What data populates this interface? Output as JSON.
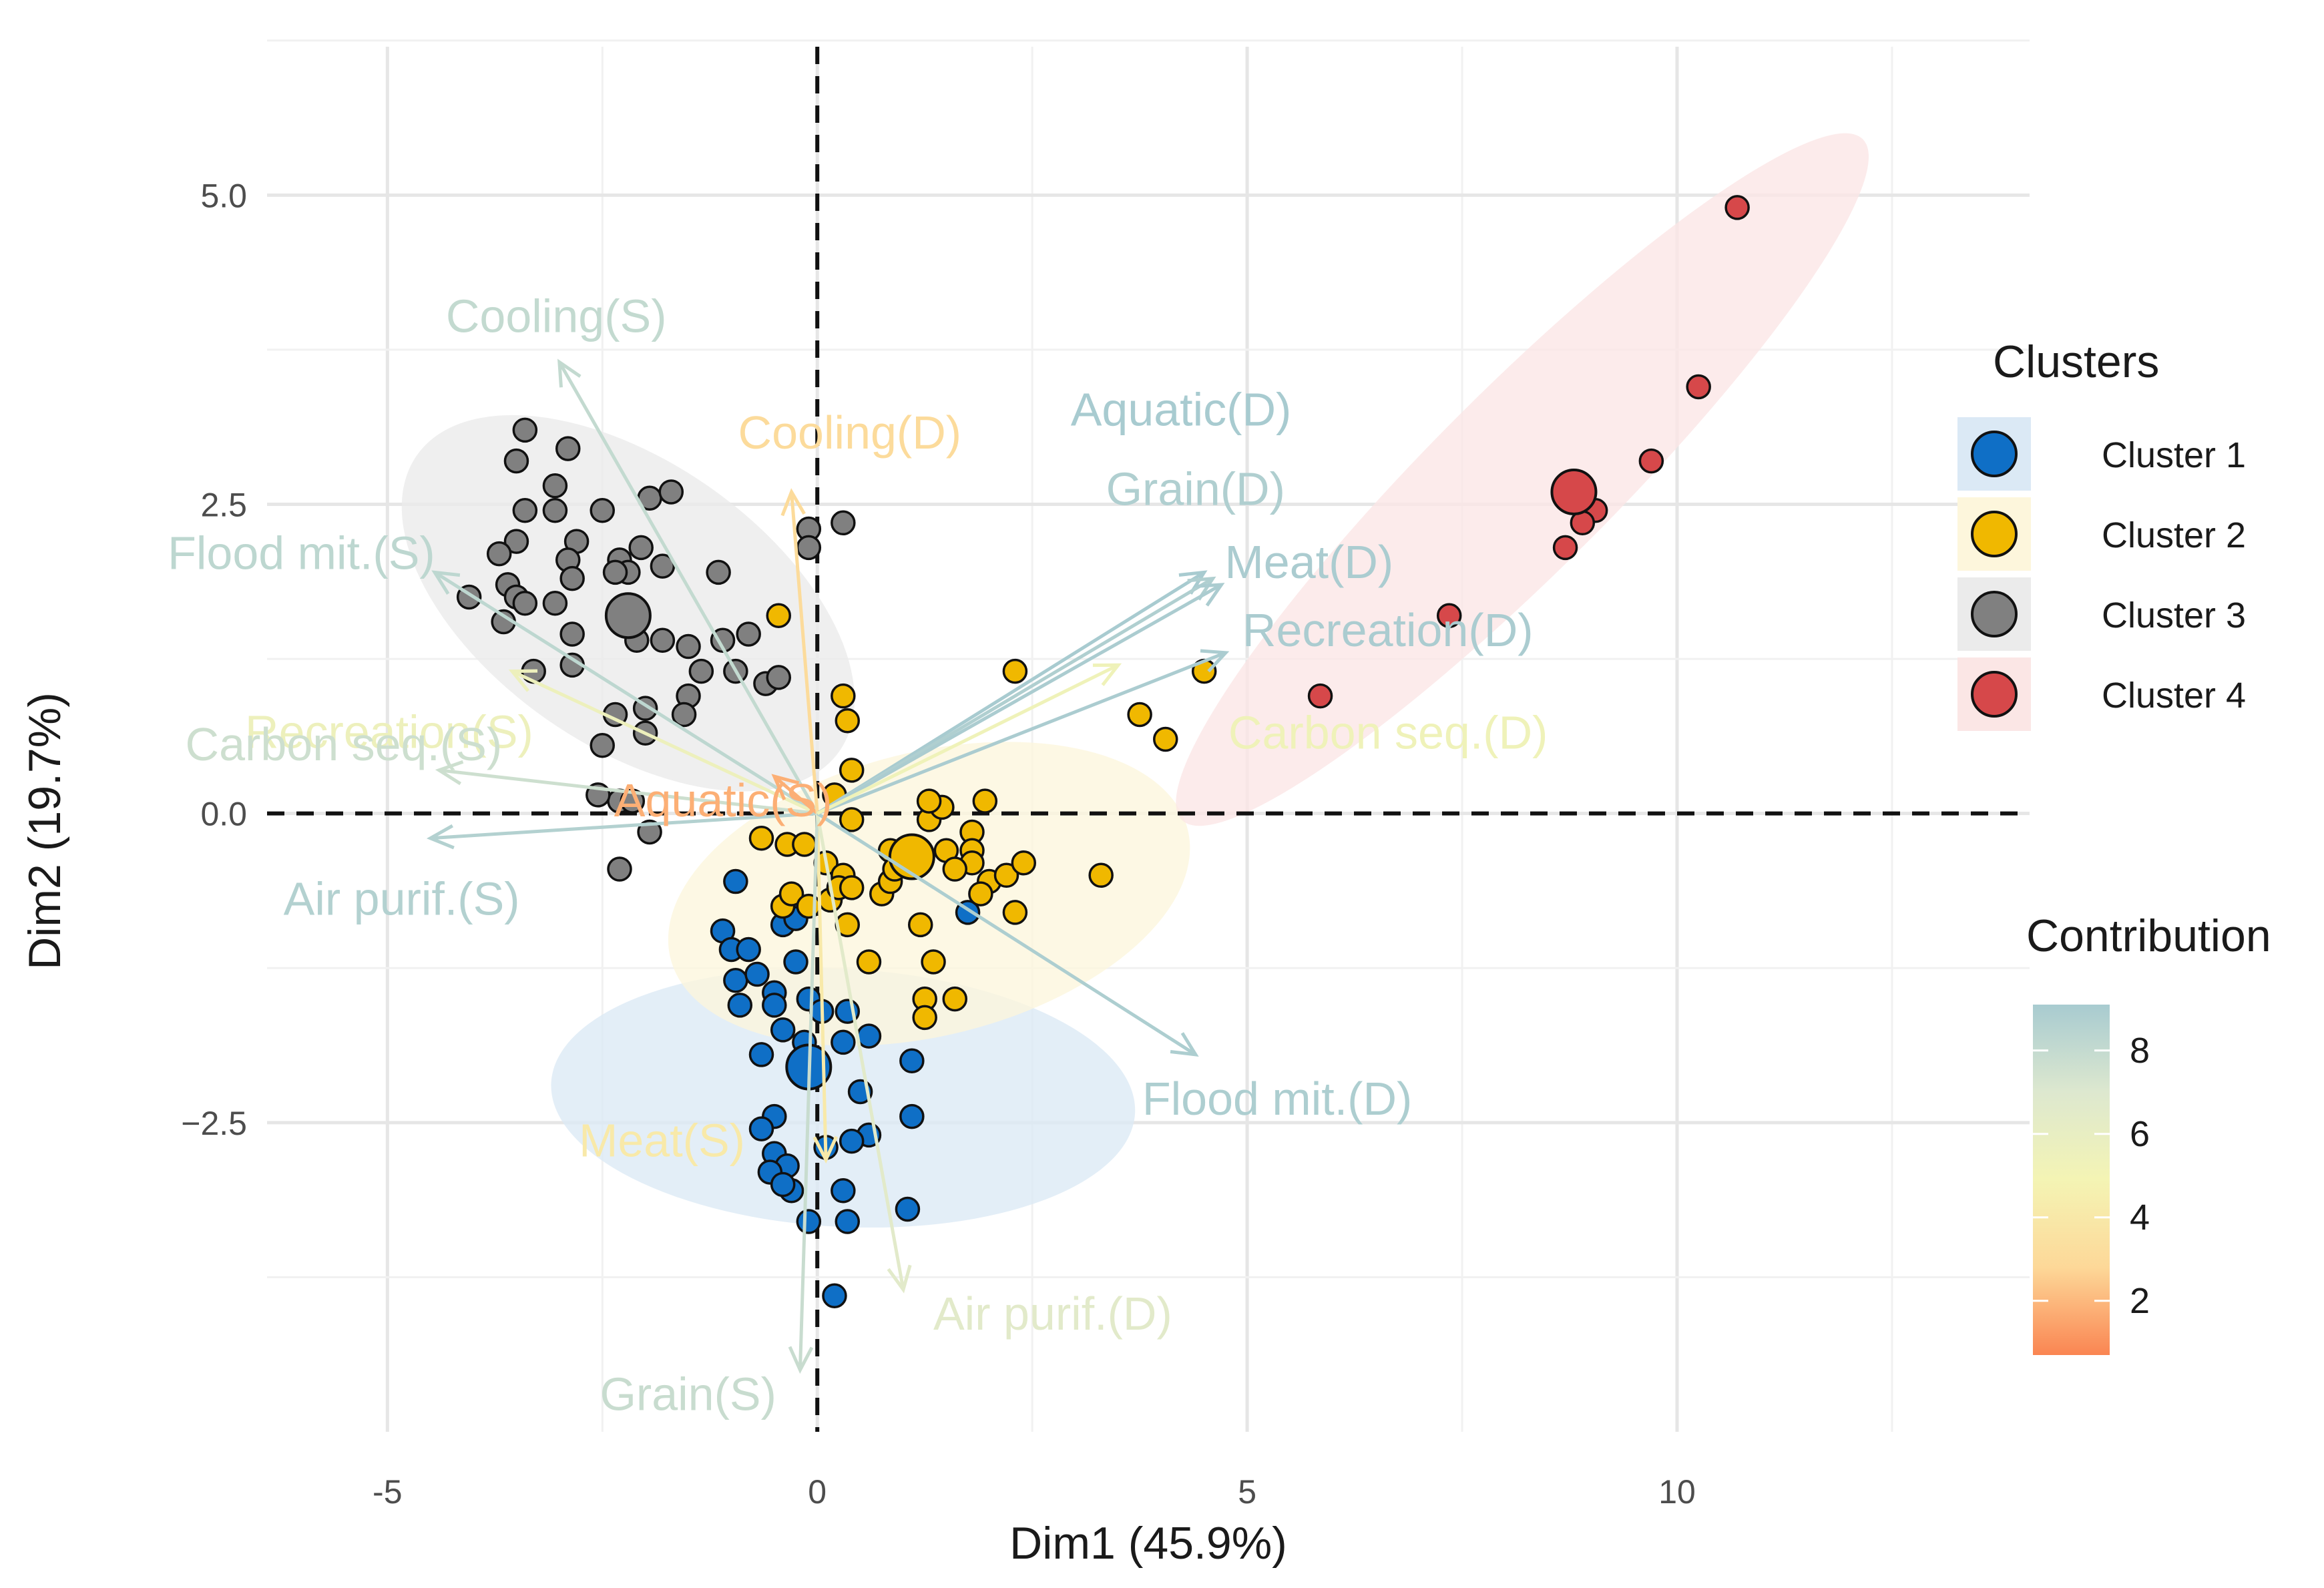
{
  "chart_data": {
    "type": "scatter",
    "subtype": "PCA biplot (individuals + variables)",
    "xlabel": "Dim1 (45.9%)",
    "ylabel": "Dim2 (19.7%)",
    "xlim": [
      -6.4,
      14.1
    ],
    "ylim": [
      -5.0,
      6.2
    ],
    "x_ticks": [
      -5,
      0,
      5,
      10
    ],
    "y_ticks": [
      -2.5,
      0.0,
      2.5,
      5.0
    ],
    "x_tick_labels": [
      "-5",
      "0",
      "5",
      "10"
    ],
    "y_tick_labels": [
      "−2.5",
      "0.0",
      "2.5",
      "5.0"
    ],
    "grid": true,
    "reference_lines": {
      "x": 0,
      "y": 0,
      "style": "dashed"
    },
    "legends": {
      "clusters": {
        "title": "Clusters",
        "position": "right",
        "items": [
          {
            "label": "Cluster 1",
            "color": "#0f6fc6"
          },
          {
            "label": "Cluster 2",
            "color": "#f0b800"
          },
          {
            "label": "Cluster 3",
            "color": "#808080"
          },
          {
            "label": "Cluster 4",
            "color": "#d6484a"
          }
        ]
      },
      "contribution": {
        "title": "Contribution",
        "position": "right-bottom",
        "range": [
          1,
          9
        ],
        "tick_values": [
          2,
          4,
          6,
          8
        ],
        "tick_labels": [
          "2",
          "4",
          "6",
          "8"
        ],
        "gradient": [
          "#fa8552",
          "#fdd898",
          "#f4f4b4",
          "#dde8cf",
          "#a8cbd0"
        ]
      }
    },
    "clusters": [
      {
        "name": "Cluster 1",
        "color": "#0f6fc6",
        "fill": "#dbe9f5",
        "centroid": [
          -0.1,
          -2.05
        ],
        "ellipse": {
          "cx": 0.3,
          "cy": -2.3,
          "rx": 1.5,
          "ry": 3.4,
          "angle_deg": 87
        },
        "points": [
          [
            -0.95,
            -0.55
          ],
          [
            -1.1,
            -0.95
          ],
          [
            -1.0,
            -1.1
          ],
          [
            -0.8,
            -1.1
          ],
          [
            -0.95,
            -1.35
          ],
          [
            -0.7,
            -1.3
          ],
          [
            -0.5,
            -1.45
          ],
          [
            -0.4,
            -0.9
          ],
          [
            -0.3,
            -0.7
          ],
          [
            -0.25,
            -1.2
          ],
          [
            -0.1,
            -1.5
          ],
          [
            -0.9,
            -1.55
          ],
          [
            -0.5,
            -1.55
          ],
          [
            -0.4,
            -1.75
          ],
          [
            -0.65,
            -1.95
          ],
          [
            -0.15,
            -1.85
          ],
          [
            0.05,
            -1.6
          ],
          [
            0.35,
            -1.6
          ],
          [
            0.3,
            -1.85
          ],
          [
            0.6,
            -1.8
          ],
          [
            1.1,
            -2.0
          ],
          [
            0.5,
            -2.25
          ],
          [
            1.1,
            -2.45
          ],
          [
            0.6,
            -2.6
          ],
          [
            0.4,
            -2.65
          ],
          [
            0.1,
            -2.7
          ],
          [
            -0.5,
            -2.45
          ],
          [
            -0.65,
            -2.55
          ],
          [
            -0.5,
            -2.75
          ],
          [
            -0.35,
            -2.85
          ],
          [
            -0.55,
            -2.9
          ],
          [
            -0.3,
            -3.05
          ],
          [
            -0.4,
            -3.0
          ],
          [
            0.3,
            -3.05
          ],
          [
            0.35,
            -3.3
          ],
          [
            -0.1,
            -3.3
          ],
          [
            1.05,
            -3.2
          ],
          [
            0.2,
            -3.9
          ],
          [
            1.75,
            -0.8
          ],
          [
            -0.25,
            -0.85
          ]
        ]
      },
      {
        "name": "Cluster 2",
        "color": "#f0b800",
        "fill": "#fdf6dc",
        "centroid": [
          1.1,
          -0.35
        ],
        "ellipse": {
          "cx": 1.3,
          "cy": -0.65,
          "rx": 3.1,
          "ry": 1.65,
          "angle_deg": 14
        },
        "points": [
          [
            -0.45,
            1.6
          ],
          [
            0.3,
            0.95
          ],
          [
            0.35,
            0.75
          ],
          [
            0.4,
            0.35
          ],
          [
            0.2,
            0.15
          ],
          [
            0.4,
            -0.05
          ],
          [
            -0.65,
            -0.2
          ],
          [
            -0.35,
            -0.25
          ],
          [
            -0.15,
            -0.25
          ],
          [
            0.1,
            -0.4
          ],
          [
            0.3,
            -0.5
          ],
          [
            -0.4,
            -0.75
          ],
          [
            -0.3,
            -0.65
          ],
          [
            -0.1,
            -0.75
          ],
          [
            0.15,
            -0.7
          ],
          [
            0.25,
            -0.6
          ],
          [
            0.4,
            -0.6
          ],
          [
            0.35,
            -0.9
          ],
          [
            0.75,
            -0.65
          ],
          [
            0.85,
            -0.55
          ],
          [
            0.85,
            -0.3
          ],
          [
            0.9,
            -0.45
          ],
          [
            1.3,
            -0.05
          ],
          [
            1.45,
            0.05
          ],
          [
            1.3,
            0.1
          ],
          [
            1.5,
            -0.3
          ],
          [
            1.8,
            -0.15
          ],
          [
            1.8,
            -0.3
          ],
          [
            1.8,
            -0.4
          ],
          [
            2.0,
            -0.55
          ],
          [
            1.9,
            -0.65
          ],
          [
            2.2,
            -0.5
          ],
          [
            2.4,
            -0.4
          ],
          [
            2.3,
            -0.8
          ],
          [
            1.95,
            0.1
          ],
          [
            1.6,
            -0.45
          ],
          [
            1.2,
            -0.9
          ],
          [
            1.35,
            -1.2
          ],
          [
            0.6,
            -1.2
          ],
          [
            1.25,
            -1.5
          ],
          [
            1.25,
            -1.65
          ],
          [
            1.6,
            -1.5
          ],
          [
            3.3,
            -0.5
          ],
          [
            2.3,
            1.15
          ],
          [
            3.75,
            0.8
          ],
          [
            4.05,
            0.6
          ],
          [
            4.5,
            1.15
          ]
        ]
      },
      {
        "name": "Cluster 3",
        "color": "#808080",
        "fill": "#ebebeb",
        "centroid": [
          -2.2,
          1.6
        ],
        "ellipse": {
          "cx": -2.2,
          "cy": 1.7,
          "rx": 3.0,
          "ry": 1.65,
          "angle_deg": -35
        },
        "points": [
          [
            -3.4,
            3.1
          ],
          [
            -3.5,
            2.85
          ],
          [
            -2.9,
            2.95
          ],
          [
            -3.05,
            2.65
          ],
          [
            -3.05,
            2.45
          ],
          [
            -3.4,
            2.45
          ],
          [
            -2.5,
            2.45
          ],
          [
            -3.5,
            2.2
          ],
          [
            -2.8,
            2.2
          ],
          [
            -3.7,
            2.1
          ],
          [
            -2.9,
            2.05
          ],
          [
            -2.3,
            2.05
          ],
          [
            -1.95,
            2.55
          ],
          [
            -1.7,
            2.6
          ],
          [
            -2.05,
            2.15
          ],
          [
            -1.8,
            2.0
          ],
          [
            -2.2,
            1.95
          ],
          [
            -2.35,
            1.95
          ],
          [
            -2.85,
            1.9
          ],
          [
            -3.6,
            1.85
          ],
          [
            -3.5,
            1.75
          ],
          [
            -3.4,
            1.7
          ],
          [
            -3.05,
            1.7
          ],
          [
            -4.05,
            1.75
          ],
          [
            -3.65,
            1.55
          ],
          [
            -2.85,
            1.45
          ],
          [
            -2.1,
            1.4
          ],
          [
            -1.8,
            1.4
          ],
          [
            -1.5,
            1.35
          ],
          [
            -1.15,
            1.95
          ],
          [
            -1.1,
            1.4
          ],
          [
            -0.8,
            1.45
          ],
          [
            -2.85,
            1.2
          ],
          [
            -3.3,
            1.15
          ],
          [
            -1.35,
            1.15
          ],
          [
            -0.95,
            1.15
          ],
          [
            -0.6,
            1.05
          ],
          [
            -0.45,
            1.1
          ],
          [
            -1.5,
            0.95
          ],
          [
            -1.55,
            0.8
          ],
          [
            -2.35,
            0.8
          ],
          [
            -2.0,
            0.85
          ],
          [
            -2.0,
            0.65
          ],
          [
            -2.5,
            0.55
          ],
          [
            -2.3,
            0.1
          ],
          [
            -2.55,
            0.15
          ],
          [
            -2.15,
            0.1
          ],
          [
            -1.95,
            -0.15
          ],
          [
            -2.3,
            -0.45
          ],
          [
            -0.1,
            2.3
          ],
          [
            -0.1,
            2.15
          ],
          [
            0.3,
            2.35
          ]
        ]
      },
      {
        "name": "Cluster 4",
        "color": "#d6484a",
        "fill": "#fbe6e5",
        "centroid": [
          8.8,
          2.6
        ],
        "ellipse": {
          "cx": 8.2,
          "cy": 2.7,
          "rx": 5.6,
          "ry": 1.05,
          "angle_deg": 45
        },
        "points": [
          [
            10.7,
            4.9
          ],
          [
            10.25,
            3.45
          ],
          [
            9.7,
            2.85
          ],
          [
            9.05,
            2.45
          ],
          [
            8.9,
            2.35
          ],
          [
            8.7,
            2.15
          ],
          [
            7.35,
            1.6
          ],
          [
            5.85,
            0.95
          ]
        ]
      }
    ],
    "variables": [
      {
        "label": "Cooling(S)",
        "x": -3.0,
        "y": 3.65,
        "contribution": 8.0
      },
      {
        "label": "Flood mit.(S)",
        "x": -4.45,
        "y": 1.95,
        "contribution": 8.2
      },
      {
        "label": "Recreation(S)",
        "x": -3.55,
        "y": 1.15,
        "contribution": 5.6
      },
      {
        "label": "Carbon seq.(S)",
        "x": -4.4,
        "y": 0.35,
        "contribution": 7.6
      },
      {
        "label": "Air purif.(S)",
        "x": -4.5,
        "y": -0.2,
        "contribution": 8.6
      },
      {
        "label": "Aquatic(S)",
        "x": -0.5,
        "y": 0.3,
        "contribution": 2.0
      },
      {
        "label": "Cooling(D)",
        "x": -0.3,
        "y": 2.6,
        "contribution": 3.2
      },
      {
        "label": "Meat(S)",
        "x": 0.1,
        "y": -2.8,
        "contribution": 4.2
      },
      {
        "label": "Grain(S)",
        "x": -0.2,
        "y": -4.5,
        "contribution": 7.8
      },
      {
        "label": "Air  purif.(D)",
        "x": 1.0,
        "y": -3.85,
        "contribution": 6.6
      },
      {
        "label": "Flood mit.(D)",
        "x": 4.4,
        "y": -1.95,
        "contribution": 8.8
      },
      {
        "label": "Aquatic(D)",
        "x": 4.5,
        "y": 1.95,
        "contribution": 9.0
      },
      {
        "label": "Grain(D)",
        "x": 4.6,
        "y": 1.9,
        "contribution": 8.7
      },
      {
        "label": "Meat(D)",
        "x": 4.7,
        "y": 1.85,
        "contribution": 8.9
      },
      {
        "label": "Recreation(D)",
        "x": 4.75,
        "y": 1.3,
        "contribution": 8.9
      },
      {
        "label": "Carbon seq.(D)",
        "x": 3.5,
        "y": 1.2,
        "contribution": 5.4
      }
    ]
  }
}
